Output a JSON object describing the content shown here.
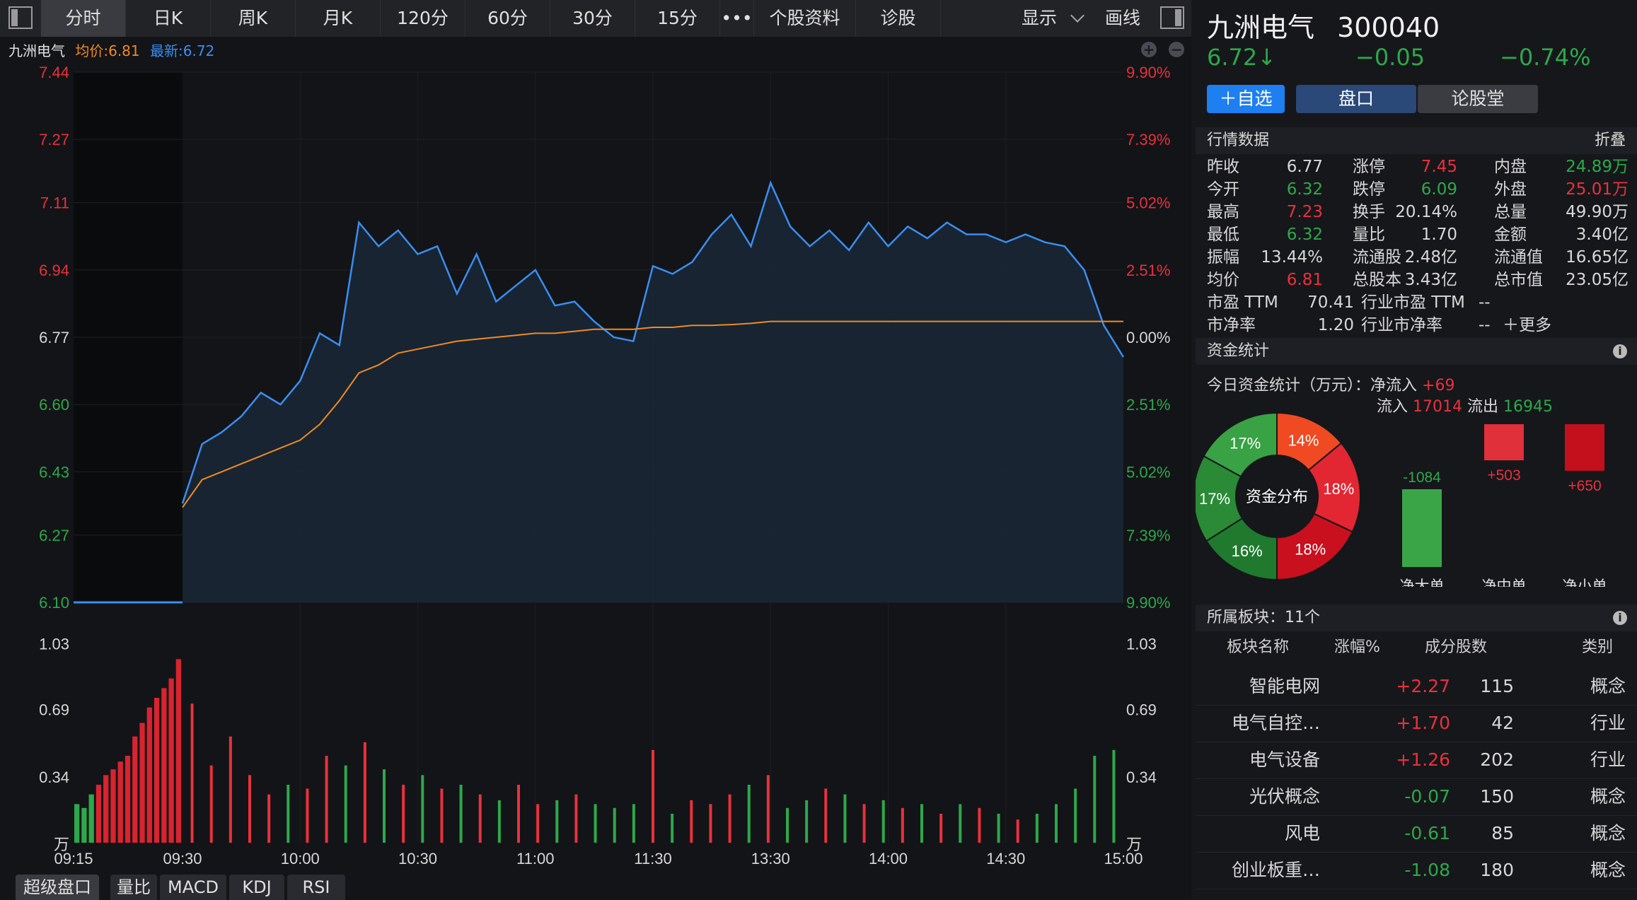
{
  "toolbar": {
    "tabs": [
      "分时",
      "日K",
      "周K",
      "月K",
      "120分",
      "60分",
      "30分",
      "15分",
      "•••",
      "个股资料",
      "诊股"
    ],
    "display_label": "显示",
    "draw_label": "画线"
  },
  "chart": {
    "info": {
      "name": "九洲电气",
      "avg_label": "均价:6.81",
      "last_label": "最新:6.72"
    },
    "price_ticks": [
      "7.44",
      "7.27",
      "7.11",
      "6.94",
      "6.77",
      "6.60",
      "6.43",
      "6.27",
      "6.10"
    ],
    "pct_ticks": [
      "9.90%",
      "7.39%",
      "5.02%",
      "2.51%",
      "0.00%",
      "2.51%",
      "5.02%",
      "7.39%",
      "9.90%"
    ],
    "vol_ticks": [
      "1.03",
      "0.69",
      "0.34",
      "万"
    ],
    "time_ticks": [
      "09:15",
      "09:30",
      "10:00",
      "10:30",
      "11:00",
      "11:30",
      "13:30",
      "14:00",
      "14:30",
      "15:00"
    ],
    "bottom_tabs": [
      "超级盘口",
      "量比",
      "MACD",
      "KDJ",
      "RSI"
    ]
  },
  "chart_data": {
    "type": "line",
    "prev_close": 6.77,
    "ylim": [
      6.1,
      7.44
    ],
    "x": [
      "09:30",
      "09:35",
      "09:40",
      "09:45",
      "09:50",
      "09:55",
      "10:00",
      "10:05",
      "10:10",
      "10:15",
      "10:20",
      "10:25",
      "10:30",
      "10:35",
      "10:40",
      "10:45",
      "10:50",
      "10:55",
      "11:00",
      "11:05",
      "11:10",
      "11:15",
      "11:20",
      "11:25",
      "11:30",
      "13:05",
      "13:10",
      "13:15",
      "13:20",
      "13:25",
      "13:30",
      "13:35",
      "13:40",
      "13:45",
      "13:50",
      "13:55",
      "14:00",
      "14:05",
      "14:10",
      "14:15",
      "14:20",
      "14:25",
      "14:30",
      "14:35",
      "14:40",
      "14:45",
      "14:50",
      "14:55",
      "15:00"
    ],
    "series": [
      {
        "values": [
          6.35,
          6.5,
          6.53,
          6.57,
          6.63,
          6.6,
          6.66,
          6.78,
          6.75,
          7.06,
          7.0,
          7.04,
          6.98,
          7.0,
          6.88,
          6.98,
          6.86,
          6.9,
          6.94,
          6.85,
          6.86,
          6.81,
          6.77,
          6.76,
          6.95,
          6.93,
          6.96,
          7.03,
          7.08,
          7.0,
          7.16,
          7.05,
          7.0,
          7.04,
          6.99,
          7.06,
          7.0,
          7.05,
          7.02,
          7.06,
          7.03,
          7.03,
          7.01,
          7.03,
          7.01,
          7.0,
          6.94,
          6.8,
          6.72
        ]
      },
      {
        "values": [
          6.34,
          6.41,
          6.43,
          6.45,
          6.47,
          6.49,
          6.51,
          6.55,
          6.61,
          6.68,
          6.7,
          6.73,
          6.74,
          6.75,
          6.76,
          6.765,
          6.77,
          6.775,
          6.78,
          6.78,
          6.785,
          6.79,
          6.79,
          6.79,
          6.795,
          6.795,
          6.8,
          6.8,
          6.802,
          6.805,
          6.81,
          6.81,
          6.81,
          6.81,
          6.81,
          6.81,
          6.81,
          6.81,
          6.81,
          6.81,
          6.81,
          6.81,
          6.81,
          6.81,
          6.81,
          6.81,
          6.81,
          6.81,
          6.81
        ]
      }
    ],
    "volume_max": 1.2,
    "volume_pre_open": [
      0.2,
      0.18,
      0.25,
      0.3,
      0.35,
      0.38,
      0.42,
      0.45,
      0.55,
      0.62,
      0.7,
      0.75,
      0.8,
      0.85,
      0.95
    ],
    "volume": [
      0.72,
      0.4,
      0.55,
      0.35,
      0.25,
      0.3,
      0.28,
      0.45,
      0.4,
      0.52,
      0.38,
      0.3,
      0.35,
      0.28,
      0.3,
      0.25,
      0.22,
      0.3,
      0.2,
      0.22,
      0.25,
      0.2,
      0.18,
      0.2,
      0.48,
      0.15,
      0.22,
      0.2,
      0.25,
      0.3,
      0.35,
      0.18,
      0.22,
      0.28,
      0.25,
      0.2,
      0.22,
      0.18,
      0.2,
      0.15,
      0.2,
      0.18,
      0.15,
      0.12,
      0.15,
      0.2,
      0.28,
      0.45,
      0.48
    ]
  },
  "quote": {
    "name": "九洲电气",
    "code": "300040",
    "price": "6.72",
    "arrow": "↓",
    "change": "−0.05",
    "change_pct": "−0.74%",
    "add_label": "＋自选",
    "tab_pankou": "盘口",
    "tab_lungu": "论股堂"
  },
  "quotes_section": {
    "title": "行情数据",
    "fold": "折叠",
    "rows": [
      [
        [
          "昨收",
          "6.77",
          ""
        ],
        [
          "涨停",
          "7.45",
          "red"
        ],
        [
          "内盘",
          "24.89万",
          "green"
        ]
      ],
      [
        [
          "今开",
          "6.32",
          "green"
        ],
        [
          "跌停",
          "6.09",
          "green"
        ],
        [
          "外盘",
          "25.01万",
          "red"
        ]
      ],
      [
        [
          "最高",
          "7.23",
          "red"
        ],
        [
          "换手",
          "20.14%",
          ""
        ],
        [
          "总量",
          "49.90万",
          ""
        ]
      ],
      [
        [
          "最低",
          "6.32",
          "green"
        ],
        [
          "量比",
          "1.70",
          ""
        ],
        [
          "金额",
          "3.40亿",
          ""
        ]
      ],
      [
        [
          "振幅",
          "13.44%",
          ""
        ],
        [
          "流通股",
          "2.48亿",
          ""
        ],
        [
          "流通值",
          "16.65亿",
          ""
        ]
      ],
      [
        [
          "均价",
          "6.81",
          "red"
        ],
        [
          "总股本",
          "3.43亿",
          ""
        ],
        [
          "总市值",
          "23.05亿",
          ""
        ]
      ]
    ],
    "pe_label": "市盈 TTM",
    "pe": "70.41",
    "ind_pe_label": "行业市盈 TTM",
    "ind_pe": "--",
    "pb_label": "市净率",
    "pb": "1.20",
    "ind_pb_label": "行业市净率",
    "ind_pb": "--",
    "more": "＋更多"
  },
  "funds": {
    "title": "资金统计",
    "today_label": "今日资金统计（万元）：",
    "net_in_label": "净流入",
    "net_in": "+69",
    "in_label": "流入",
    "in_val": "17014",
    "out_label": "流出",
    "out_val": "16945",
    "donut_center": "资金分布",
    "slices": [
      {
        "label": "14%",
        "value": 14,
        "color": "#f04a22"
      },
      {
        "label": "18%",
        "value": 18,
        "color": "#e22632"
      },
      {
        "label": "18%",
        "value": 18,
        "color": "#c8101e"
      },
      {
        "label": "16%",
        "value": 16,
        "color": "#1f7a2e"
      },
      {
        "label": "17%",
        "value": 17,
        "color": "#2a8a36"
      },
      {
        "label": "17%",
        "value": 17,
        "color": "#38a244"
      }
    ],
    "bars": [
      {
        "label": "净大单",
        "value": "-1084",
        "color": "#3aa547",
        "vcolor": "#2ea84a"
      },
      {
        "label": "净中单",
        "value": "+503",
        "color": "#e0303a",
        "vcolor": "#e8323c"
      },
      {
        "label": "净小单",
        "value": "+650",
        "color": "#c40f1c",
        "vcolor": "#e8323c"
      }
    ]
  },
  "plates": {
    "title": "所属板块：11个",
    "headers": [
      "板块名称",
      "涨幅%",
      "成分股数",
      "类别"
    ],
    "rows": [
      [
        "智能电网",
        "+2.27",
        "115",
        "概念"
      ],
      [
        "电气自控…",
        "+1.70",
        "42",
        "行业"
      ],
      [
        "电气设备",
        "+1.26",
        "202",
        "行业"
      ],
      [
        "光伏概念",
        "-0.07",
        "150",
        "概念"
      ],
      [
        "风电",
        "-0.61",
        "85",
        "概念"
      ],
      [
        "创业板重…",
        "-1.08",
        "180",
        "概念"
      ]
    ]
  }
}
